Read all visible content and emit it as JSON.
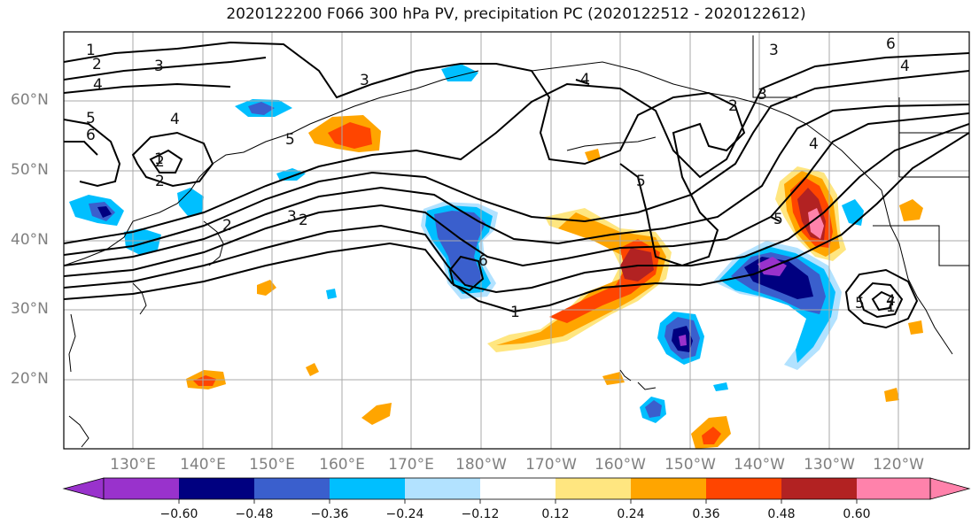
{
  "title": "2020122200 F066 300 hPa PV, precipitation PC (2020122512 - 2020122612)",
  "map": {
    "lat_labels": [
      "60°N",
      "50°N",
      "40°N",
      "30°N",
      "20°N"
    ],
    "lon_labels": [
      "130°E",
      "140°E",
      "150°E",
      "160°E",
      "170°E",
      "180°W",
      "170°W",
      "160°W",
      "150°W",
      "140°W",
      "130°W",
      "120°W"
    ],
    "pv_contour_labels": [
      "1",
      "2",
      "3",
      "4",
      "5",
      "6",
      "1",
      "2",
      "3",
      "4",
      "5",
      "2",
      "2",
      "3",
      "4",
      "5",
      "6",
      "1",
      "2",
      "3",
      "4",
      "5",
      "6",
      "3",
      "4",
      "5",
      "1",
      "2",
      "4"
    ],
    "shading_colors": {
      "neg_060": "#9932CC",
      "neg_048": "#000080",
      "neg_036": "#3A5FCD",
      "neg_024": "#00BFFF",
      "neg_012": "#B2E2FF",
      "pos_012": "#FFE680",
      "pos_024": "#FFA500",
      "pos_036": "#FF4500",
      "pos_048": "#B22222",
      "pos_060": "#FF82AB"
    }
  },
  "colorbar": {
    "tick_labels": [
      "−0.60",
      "−0.48",
      "−0.36",
      "−0.24",
      "−0.12",
      "0.12",
      "0.24",
      "0.36",
      "0.48",
      "0.60"
    ],
    "colors": [
      "#9932CC",
      "#000080",
      "#3A5FCD",
      "#00BFFF",
      "#B2E2FF",
      "#FFFFFF",
      "#FFE680",
      "#FFA500",
      "#FF4500",
      "#B22222",
      "#FF82AB"
    ]
  }
}
